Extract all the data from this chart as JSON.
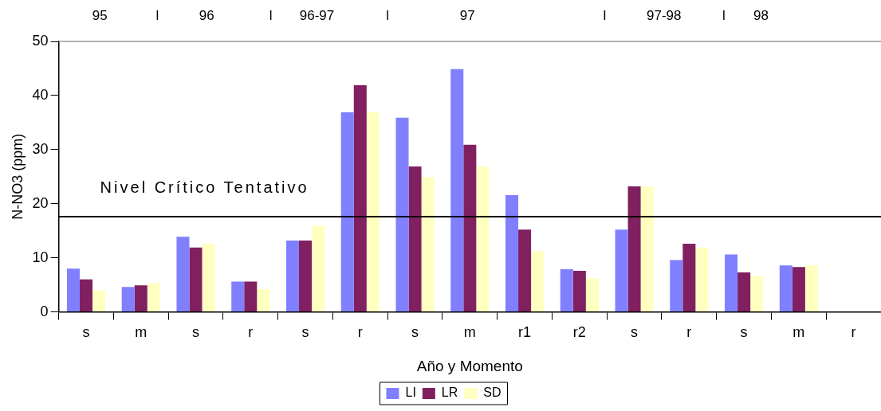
{
  "chart_data": {
    "type": "bar",
    "xlabel": "Año y Momento",
    "ylabel": "N-NO3 (ppm)",
    "categories": [
      "s",
      "m",
      "s",
      "r",
      "s",
      "r",
      "s",
      "m",
      "r1",
      "r2",
      "s",
      "r",
      "s",
      "m",
      "r"
    ],
    "series": [
      {
        "name": "LI",
        "color": "#8080ff",
        "values": [
          8,
          4.6,
          13.9,
          5.6,
          13.2,
          36.9,
          35.9,
          44.9,
          21.6,
          7.9,
          15.2,
          9.6,
          10.6,
          8.6,
          null
        ]
      },
      {
        "name": "LR",
        "color": "#802060",
        "values": [
          6,
          4.9,
          11.9,
          5.6,
          13.2,
          41.9,
          26.9,
          30.9,
          15.2,
          7.6,
          23.2,
          12.6,
          7.3,
          8.3,
          null
        ]
      },
      {
        "name": "SD",
        "color": "#ffffc0",
        "values": [
          4,
          5.3,
          12.6,
          4.2,
          15.9,
          36.9,
          24.9,
          26.9,
          11.2,
          6.2,
          23.2,
          11.9,
          6.6,
          8.6,
          null
        ]
      }
    ],
    "ylim": [
      0,
      50
    ],
    "yticks": [
      0,
      10,
      20,
      30,
      40,
      50
    ],
    "ref_lines": [
      {
        "axis": "y",
        "value": 17.6,
        "label": "Nivel Crítico Tentativo",
        "color": "#000000"
      }
    ],
    "annotations": [
      "95",
      "l",
      "96",
      "l",
      "96-97",
      "l",
      "97",
      "l",
      "97-98",
      "l",
      "98"
    ],
    "grid": false,
    "legend": "bottom"
  }
}
